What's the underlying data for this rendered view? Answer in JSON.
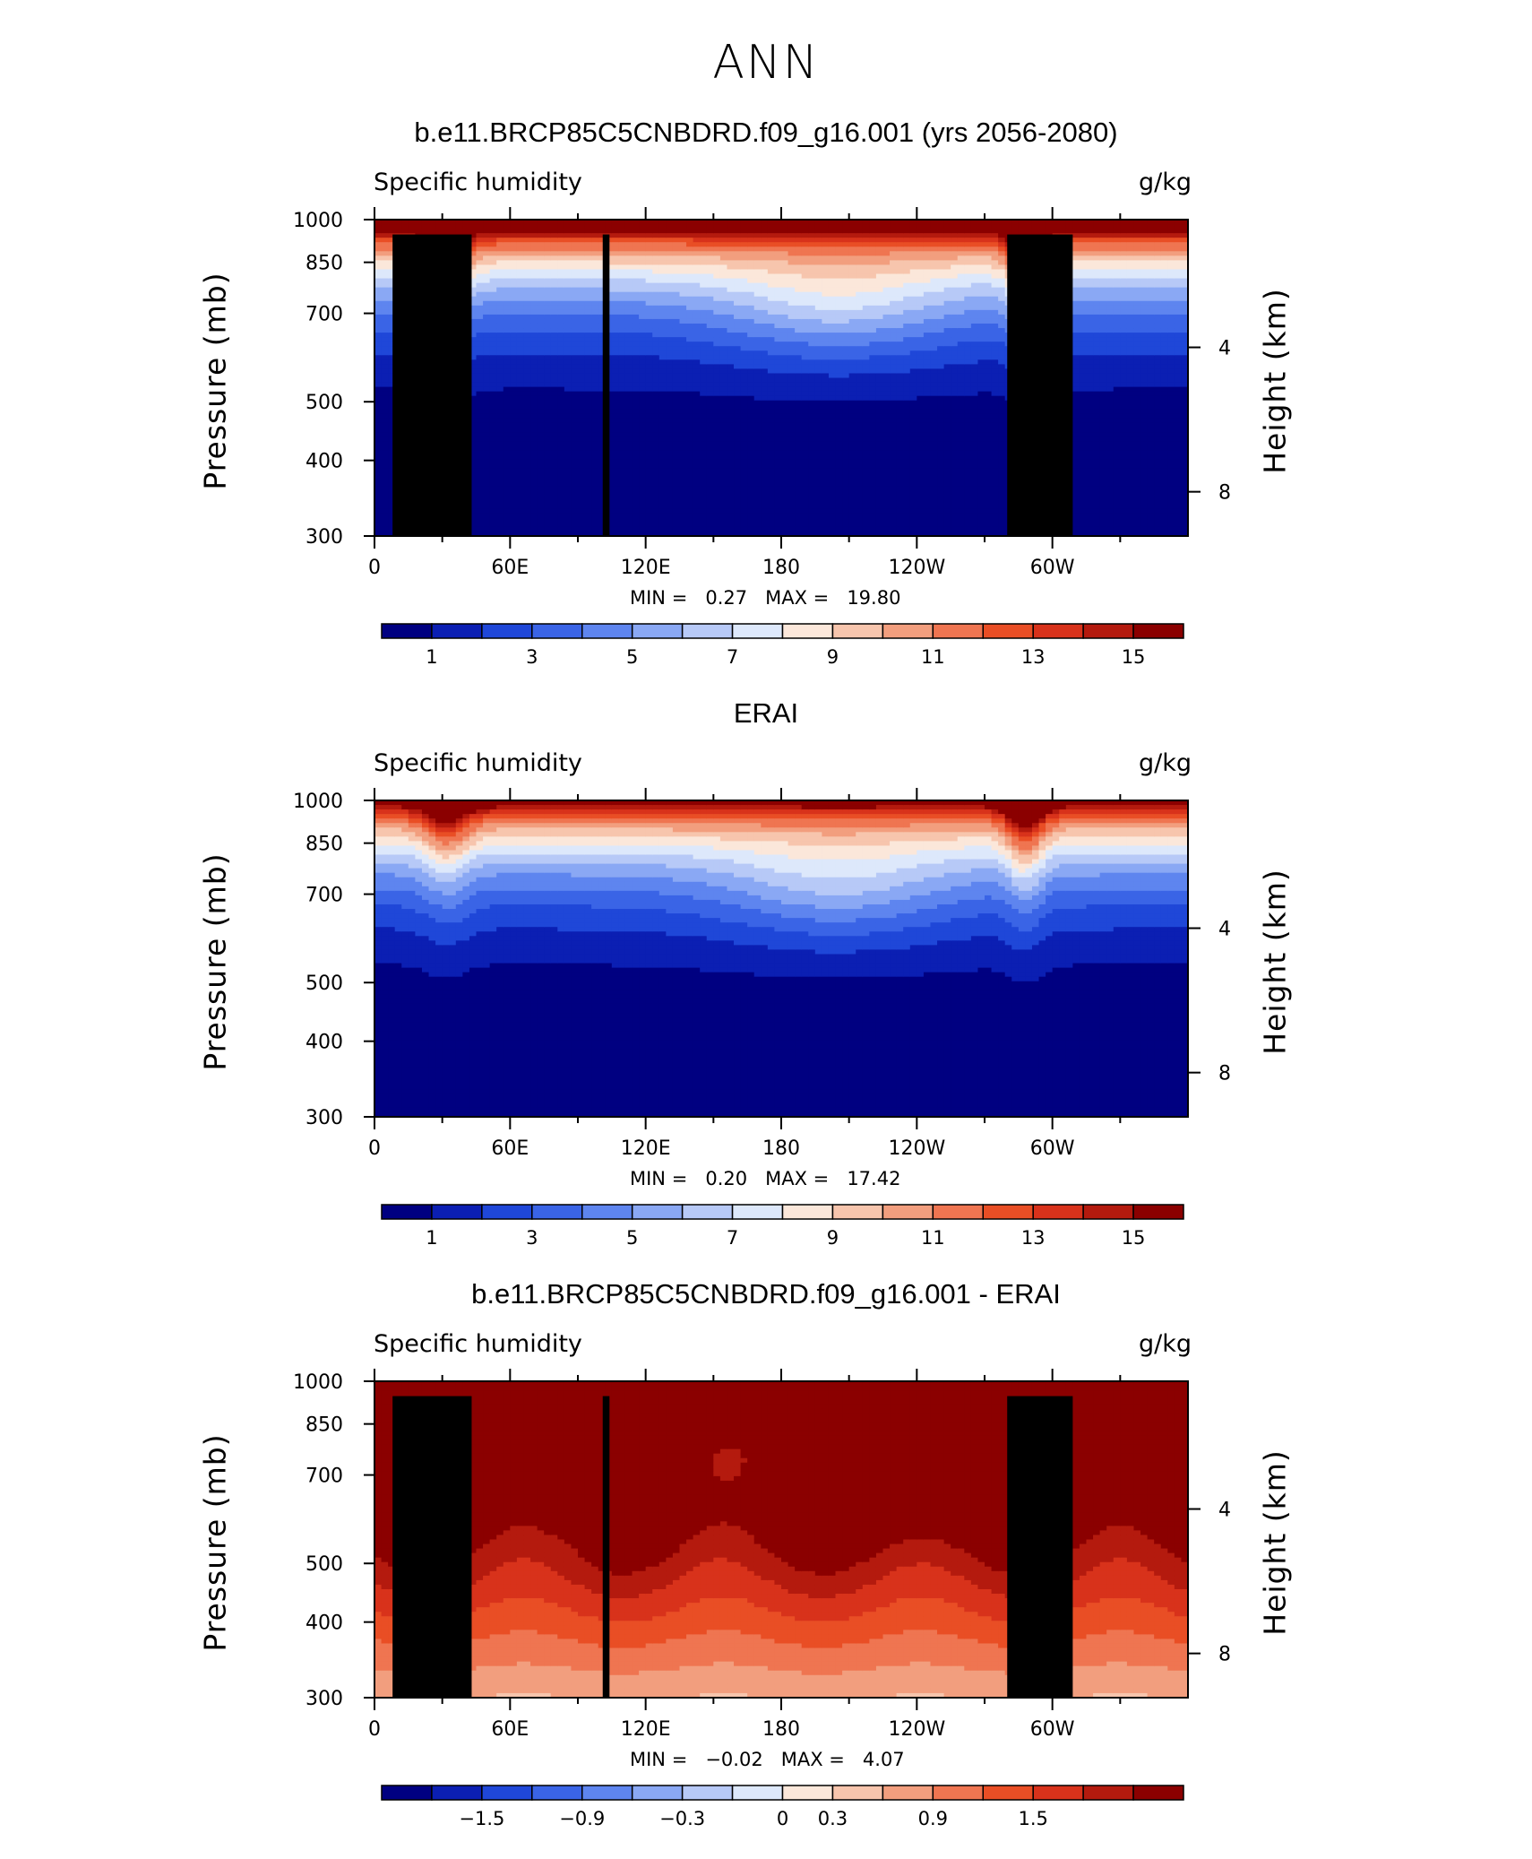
{
  "title": "ANN",
  "chart_data": [
    {
      "type": "heatmap",
      "title": "b.e11.BRCP85C5CNBDRD.f09_g16.001 (yrs 2056-2080)",
      "variable": "Specific humidity",
      "units": "g/kg",
      "ylabel": "Pressure (mb)",
      "ylabel_right": "Height (km)",
      "x_ticks": [
        "0",
        "60E",
        "120E",
        "180",
        "120W",
        "60W"
      ],
      "y_ticks": [
        "300",
        "400",
        "500",
        "700",
        "850",
        "1000"
      ],
      "y_ticks_right": [
        "8",
        "4"
      ],
      "min_label": "MIN =",
      "min_value": "0.27",
      "max_label": "MAX =",
      "max_value": "19.80",
      "colorbar_labels": [
        "1",
        "3",
        "5",
        "7",
        "9",
        "11",
        "13",
        "15"
      ],
      "colorbar_colors": [
        "#000081",
        "#0b1fb3",
        "#1f47d8",
        "#3a64e6",
        "#5e85ef",
        "#8aa8f4",
        "#b7c9f7",
        "#dde8fb",
        "#fbe7da",
        "#f7c5ad",
        "#f29e7e",
        "#ef7551",
        "#e94e25",
        "#d8321b",
        "#b41a0e",
        "#8b0000"
      ],
      "xrange": [
        0,
        360
      ],
      "yrange": [
        1000,
        300
      ]
    },
    {
      "type": "heatmap",
      "title": "ERAI",
      "variable": "Specific humidity",
      "units": "g/kg",
      "ylabel": "Pressure (mb)",
      "ylabel_right": "Height (km)",
      "x_ticks": [
        "0",
        "60E",
        "120E",
        "180",
        "120W",
        "60W"
      ],
      "y_ticks": [
        "300",
        "400",
        "500",
        "700",
        "850",
        "1000"
      ],
      "y_ticks_right": [
        "8",
        "4"
      ],
      "min_label": "MIN =",
      "min_value": "0.20",
      "max_label": "MAX =",
      "max_value": "17.42",
      "colorbar_labels": [
        "1",
        "3",
        "5",
        "7",
        "9",
        "11",
        "13",
        "15"
      ],
      "colorbar_colors": [
        "#000081",
        "#0b1fb3",
        "#1f47d8",
        "#3a64e6",
        "#5e85ef",
        "#8aa8f4",
        "#b7c9f7",
        "#dde8fb",
        "#fbe7da",
        "#f7c5ad",
        "#f29e7e",
        "#ef7551",
        "#e94e25",
        "#d8321b",
        "#b41a0e",
        "#8b0000"
      ],
      "xrange": [
        0,
        360
      ],
      "yrange": [
        1000,
        300
      ]
    },
    {
      "type": "heatmap",
      "title": "b.e11.BRCP85C5CNBDRD.f09_g16.001 - ERAI",
      "variable": "Specific humidity",
      "units": "g/kg",
      "ylabel": "Pressure (mb)",
      "ylabel_right": "Height (km)",
      "x_ticks": [
        "0",
        "60E",
        "120E",
        "180",
        "120W",
        "60W"
      ],
      "y_ticks": [
        "300",
        "400",
        "500",
        "700",
        "850",
        "1000"
      ],
      "y_ticks_right": [
        "8",
        "4"
      ],
      "min_label": "MIN =",
      "min_value": "−0.02",
      "max_label": "MAX =",
      "max_value": "4.07",
      "colorbar_labels": [
        "−1.5",
        "−0.9",
        "−0.3",
        "0",
        "0.3",
        "0.9",
        "1.5"
      ],
      "colorbar_colors": [
        "#000081",
        "#0b1fb3",
        "#1f47d8",
        "#3a64e6",
        "#5e85ef",
        "#8aa8f4",
        "#b7c9f7",
        "#dde8fb",
        "#fbe7da",
        "#f7c5ad",
        "#f29e7e",
        "#ef7551",
        "#e94e25",
        "#d8321b",
        "#b41a0e",
        "#8b0000"
      ],
      "xrange": [
        0,
        360
      ],
      "yrange": [
        1000,
        300
      ]
    }
  ]
}
